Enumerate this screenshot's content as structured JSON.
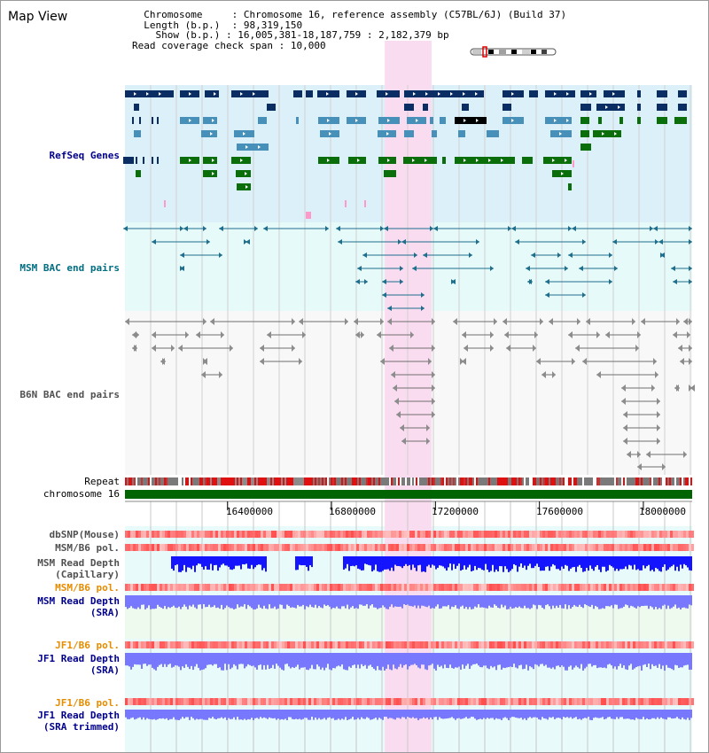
{
  "header": {
    "title": "Map View",
    "chromosome_label": "Chromosome",
    "chromosome_value": "Chromosome 16, reference assembly (C57BL/6J) (Build 37)",
    "length_label": "Length (b.p.)",
    "length_value": "98,319,150",
    "show_label": "Show (b.p.)",
    "show_value": "16,005,381-18,187,759 : 2,182,379 bp",
    "coverage_label": "Read coverage check span",
    "coverage_value": "10,000"
  },
  "tracks": {
    "refseq": "RefSeq Genes",
    "msm_bac": "MSM BAC end pairs",
    "b6n_bac": "B6N BAC end pairs",
    "repeat": "Repeat",
    "chromosome": "chromosome 16",
    "dbsnp": "dbSNP(Mouse)",
    "msm_b6_pol_1": "MSM/B6 pol.",
    "msm_depth_cap_1": "MSM Read Depth",
    "msm_depth_cap_2": "(Capillary)",
    "msm_b6_pol_2": "MSM/B6 pol.",
    "msm_depth_sra_1": "MSM Read Depth",
    "msm_depth_sra_2": "(SRA)",
    "jf1_b6_pol_1": "JF1/B6 pol.",
    "jf1_depth_sra_1": "JF1 Read Depth",
    "jf1_depth_sra_2": "(SRA)",
    "jf1_b6_pol_2": "JF1/B6 pol.",
    "jf1_depth_trim_1": "JF1 Read Depth",
    "jf1_depth_trim_2": "(SRA trimmed)"
  },
  "axis": {
    "ticks": [
      "16400000",
      "16800000",
      "17200000",
      "17600000",
      "18000000"
    ],
    "tick_values": [
      16400000,
      16800000,
      17200000,
      17600000,
      18000000
    ],
    "view_start": 16005381,
    "view_end": 18187759
  },
  "highlight_range": [
    17005000,
    17185000
  ],
  "colors": {
    "refseq_bg": "#dcf0fa",
    "bac_bg": "#e6fafa",
    "highlight": "#fadcf0",
    "gene_dark": "#0a2d64",
    "gene_mid": "#4690b9",
    "gene_green": "#0a6e0a",
    "msm_bac": "#1e6e8c",
    "b6n_bac": "#6e6e6e",
    "chromosome_bar": "#006400",
    "label_blue": "#00008b",
    "label_teal": "#006e82",
    "label_gray": "#505050",
    "label_orange": "#e68c00",
    "depth_blue": "#1414ff",
    "depth_light": "#7878ff"
  }
}
